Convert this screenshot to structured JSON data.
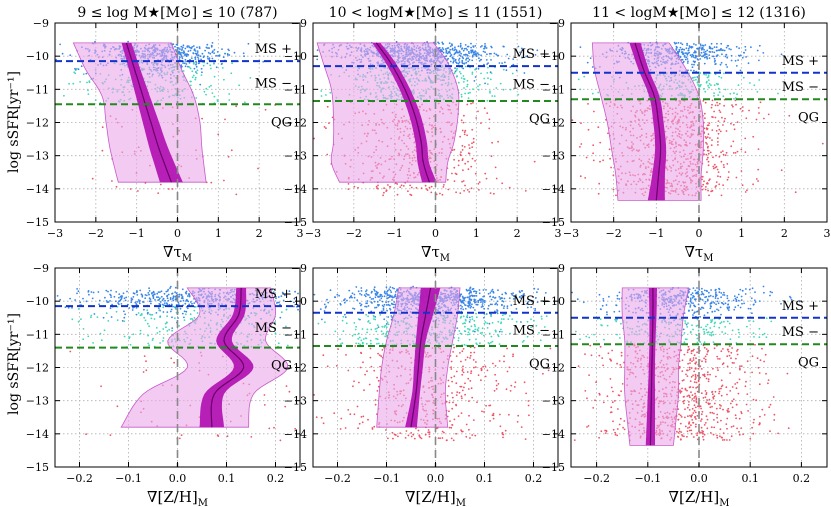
{
  "figure": {
    "y_label": "log sSFR[yr⁻¹]",
    "top_row_xlabel": "∇τM",
    "bottom_row_xlabel": "∇[Z/H]M",
    "region_labels": [
      "MS +",
      "MS −",
      "QG"
    ]
  },
  "colors": {
    "ms_plus_points": "#3a86e8",
    "ms_minus_points": "#3fd8b8",
    "qg_points": "#ee5566",
    "ms_plus_line": "#1133cc",
    "ms_minus_line": "#22891f",
    "qg_label": "#dd0000",
    "band_outer": "#e9a6ea",
    "band_inner": "#b316b3",
    "median": "#6a006a",
    "zero_line": "#888888"
  },
  "chart_data": [
    {
      "type": "scatter",
      "panel": "top-left",
      "title": "9 ≤ log M★[M⊙] ≤ 10 (787)",
      "xlabel": "∇τM",
      "ylabel": "log sSFR[yr⁻¹]",
      "xlim": [
        -3,
        3
      ],
      "ylim": [
        -15,
        -9
      ],
      "xticks": [
        -3,
        -2,
        -1,
        0,
        1,
        2,
        3
      ],
      "yticks": [
        -15,
        -14,
        -13,
        -12,
        -11,
        -10,
        -9
      ],
      "ms_plus_threshold": -10.15,
      "ms_minus_threshold": -11.45,
      "n_galaxies": 787,
      "fraction_qg": 0.08,
      "x_spread": 0.9,
      "band": {
        "y": [
          -9.6,
          -10.4,
          -11.2,
          -12.0,
          -12.8,
          -13.8
        ],
        "median": [
          -1.25,
          -1.05,
          -0.85,
          -0.65,
          -0.45,
          -0.15
        ],
        "inner_halfwidth": [
          0.12,
          0.14,
          0.17,
          0.2,
          0.23,
          0.28
        ],
        "outer_low": [
          -2.55,
          -2.25,
          -1.85,
          -1.75,
          -1.65,
          -1.45
        ],
        "outer_high": [
          -0.15,
          0.1,
          0.4,
          0.55,
          0.6,
          0.7
        ]
      }
    },
    {
      "type": "scatter",
      "panel": "top-middle",
      "title": "10 < logM★[M⊙] ≤ 11 (1551)",
      "xlabel": "∇τM",
      "ylabel": "",
      "xlim": [
        -3,
        3
      ],
      "ylim": [
        -15,
        -9
      ],
      "xticks": [
        -3,
        -2,
        -1,
        0,
        1,
        2,
        3
      ],
      "yticks": [
        -15,
        -14,
        -13,
        -12,
        -11,
        -10,
        -9
      ],
      "ms_plus_threshold": -10.3,
      "ms_minus_threshold": -11.35,
      "n_galaxies": 1551,
      "fraction_qg": 0.28,
      "x_spread": 1.0,
      "band": {
        "y": [
          -9.6,
          -10.2,
          -11.0,
          -11.8,
          -12.6,
          -13.2,
          -13.8
        ],
        "median": [
          -1.45,
          -1.1,
          -0.75,
          -0.5,
          -0.35,
          -0.3,
          -0.15
        ],
        "inner_halfwidth": [
          0.1,
          0.12,
          0.13,
          0.14,
          0.14,
          0.14,
          0.18
        ],
        "outer_low": [
          -2.9,
          -2.75,
          -2.55,
          -2.5,
          -2.5,
          -2.55,
          -2.35
        ],
        "outer_high": [
          -0.05,
          0.3,
          0.55,
          0.55,
          0.45,
          0.3,
          0.25
        ]
      }
    },
    {
      "type": "scatter",
      "panel": "top-right",
      "title": "11 < logM★[M⊙] ≤ 12 (1316)",
      "xlabel": "∇τM",
      "ylabel": "",
      "xlim": [
        -3,
        3
      ],
      "ylim": [
        -15,
        -9
      ],
      "xticks": [
        -3,
        -2,
        -1,
        0,
        1,
        2,
        3
      ],
      "yticks": [
        -15,
        -14,
        -13,
        -12,
        -11,
        -10,
        -9
      ],
      "ms_plus_threshold": -10.5,
      "ms_minus_threshold": -11.3,
      "n_galaxies": 1316,
      "fraction_qg": 0.55,
      "x_spread": 0.85,
      "band": {
        "y": [
          -9.6,
          -10.4,
          -11.2,
          -12.0,
          -12.8,
          -13.6,
          -14.35
        ],
        "median": [
          -1.5,
          -1.3,
          -1.05,
          -0.95,
          -0.9,
          -0.95,
          -1.0
        ],
        "inner_halfwidth": [
          0.13,
          0.12,
          0.12,
          0.12,
          0.13,
          0.15,
          0.2
        ],
        "outer_low": [
          -2.5,
          -2.45,
          -2.3,
          -2.15,
          -2.05,
          -1.95,
          -1.9
        ],
        "outer_high": [
          -0.7,
          -0.3,
          0.0,
          0.1,
          0.1,
          0.05,
          0.05
        ]
      }
    },
    {
      "type": "scatter",
      "panel": "bottom-left",
      "title": "",
      "xlabel": "∇[Z/H]M",
      "ylabel": "log sSFR[yr⁻¹]",
      "xlim": [
        -0.25,
        0.25
      ],
      "ylim": [
        -15,
        -9
      ],
      "xticks": [
        -0.2,
        -0.1,
        0.0,
        0.1,
        0.2
      ],
      "yticks": [
        -15,
        -14,
        -13,
        -12,
        -11,
        -10,
        -9
      ],
      "ms_plus_threshold": -10.15,
      "ms_minus_threshold": -11.4,
      "n_galaxies": 787,
      "fraction_qg": 0.08,
      "x_spread": 0.12,
      "band": {
        "y": [
          -9.6,
          -10.4,
          -11.2,
          -12.0,
          -12.8,
          -13.8
        ],
        "median": [
          0.13,
          0.125,
          0.095,
          0.135,
          0.075,
          0.07
        ],
        "inner_halfwidth": [
          0.01,
          0.012,
          0.016,
          0.02,
          0.02,
          0.025
        ],
        "outer_low": [
          0.02,
          0.045,
          -0.02,
          0.02,
          -0.07,
          -0.115
        ],
        "outer_high": [
          0.19,
          0.2,
          0.18,
          0.225,
          0.155,
          0.145
        ]
      }
    },
    {
      "type": "scatter",
      "panel": "bottom-middle",
      "title": "",
      "xlabel": "∇[Z/H]M",
      "ylabel": "",
      "xlim": [
        -0.25,
        0.25
      ],
      "ylim": [
        -15,
        -9
      ],
      "xticks": [
        -0.2,
        -0.1,
        0.0,
        0.1,
        0.2
      ],
      "yticks": [
        -15,
        -14,
        -13,
        -12,
        -11,
        -10,
        -9
      ],
      "ms_plus_threshold": -10.35,
      "ms_minus_threshold": -11.35,
      "n_galaxies": 1551,
      "fraction_qg": 0.28,
      "x_spread": 0.1,
      "band": {
        "y": [
          -9.6,
          -10.4,
          -11.2,
          -12.0,
          -12.8,
          -13.8
        ],
        "median": [
          -0.01,
          -0.02,
          -0.03,
          -0.035,
          -0.04,
          -0.05
        ],
        "inner_halfwidth": [
          0.02,
          0.015,
          0.01,
          0.009,
          0.008,
          0.012
        ],
        "outer_low": [
          -0.075,
          -0.085,
          -0.1,
          -0.11,
          -0.115,
          -0.12
        ],
        "outer_high": [
          0.05,
          0.045,
          0.035,
          0.025,
          0.02,
          0.025
        ]
      }
    },
    {
      "type": "scatter",
      "panel": "bottom-right",
      "title": "",
      "xlabel": "∇[Z/H]M",
      "ylabel": "",
      "xlim": [
        -0.25,
        0.25
      ],
      "ylim": [
        -15,
        -9
      ],
      "xticks": [
        -0.2,
        -0.1,
        0.0,
        0.1,
        0.2
      ],
      "yticks": [
        -15,
        -14,
        -13,
        -12,
        -11,
        -10,
        -9
      ],
      "ms_plus_threshold": -10.5,
      "ms_minus_threshold": -11.3,
      "n_galaxies": 1316,
      "fraction_qg": 0.55,
      "x_spread": 0.08,
      "band": {
        "y": [
          -9.6,
          -10.4,
          -11.2,
          -12.0,
          -12.8,
          -13.6,
          -14.35
        ],
        "median": [
          -0.09,
          -0.09,
          -0.091,
          -0.092,
          -0.093,
          -0.094,
          -0.095
        ],
        "inner_halfwidth": [
          0.008,
          0.007,
          0.006,
          0.006,
          0.007,
          0.008,
          0.009
        ],
        "outer_low": [
          -0.15,
          -0.15,
          -0.145,
          -0.145,
          -0.145,
          -0.14,
          -0.135
        ],
        "outer_high": [
          -0.02,
          -0.03,
          -0.035,
          -0.04,
          -0.04,
          -0.045,
          -0.05
        ]
      }
    }
  ]
}
